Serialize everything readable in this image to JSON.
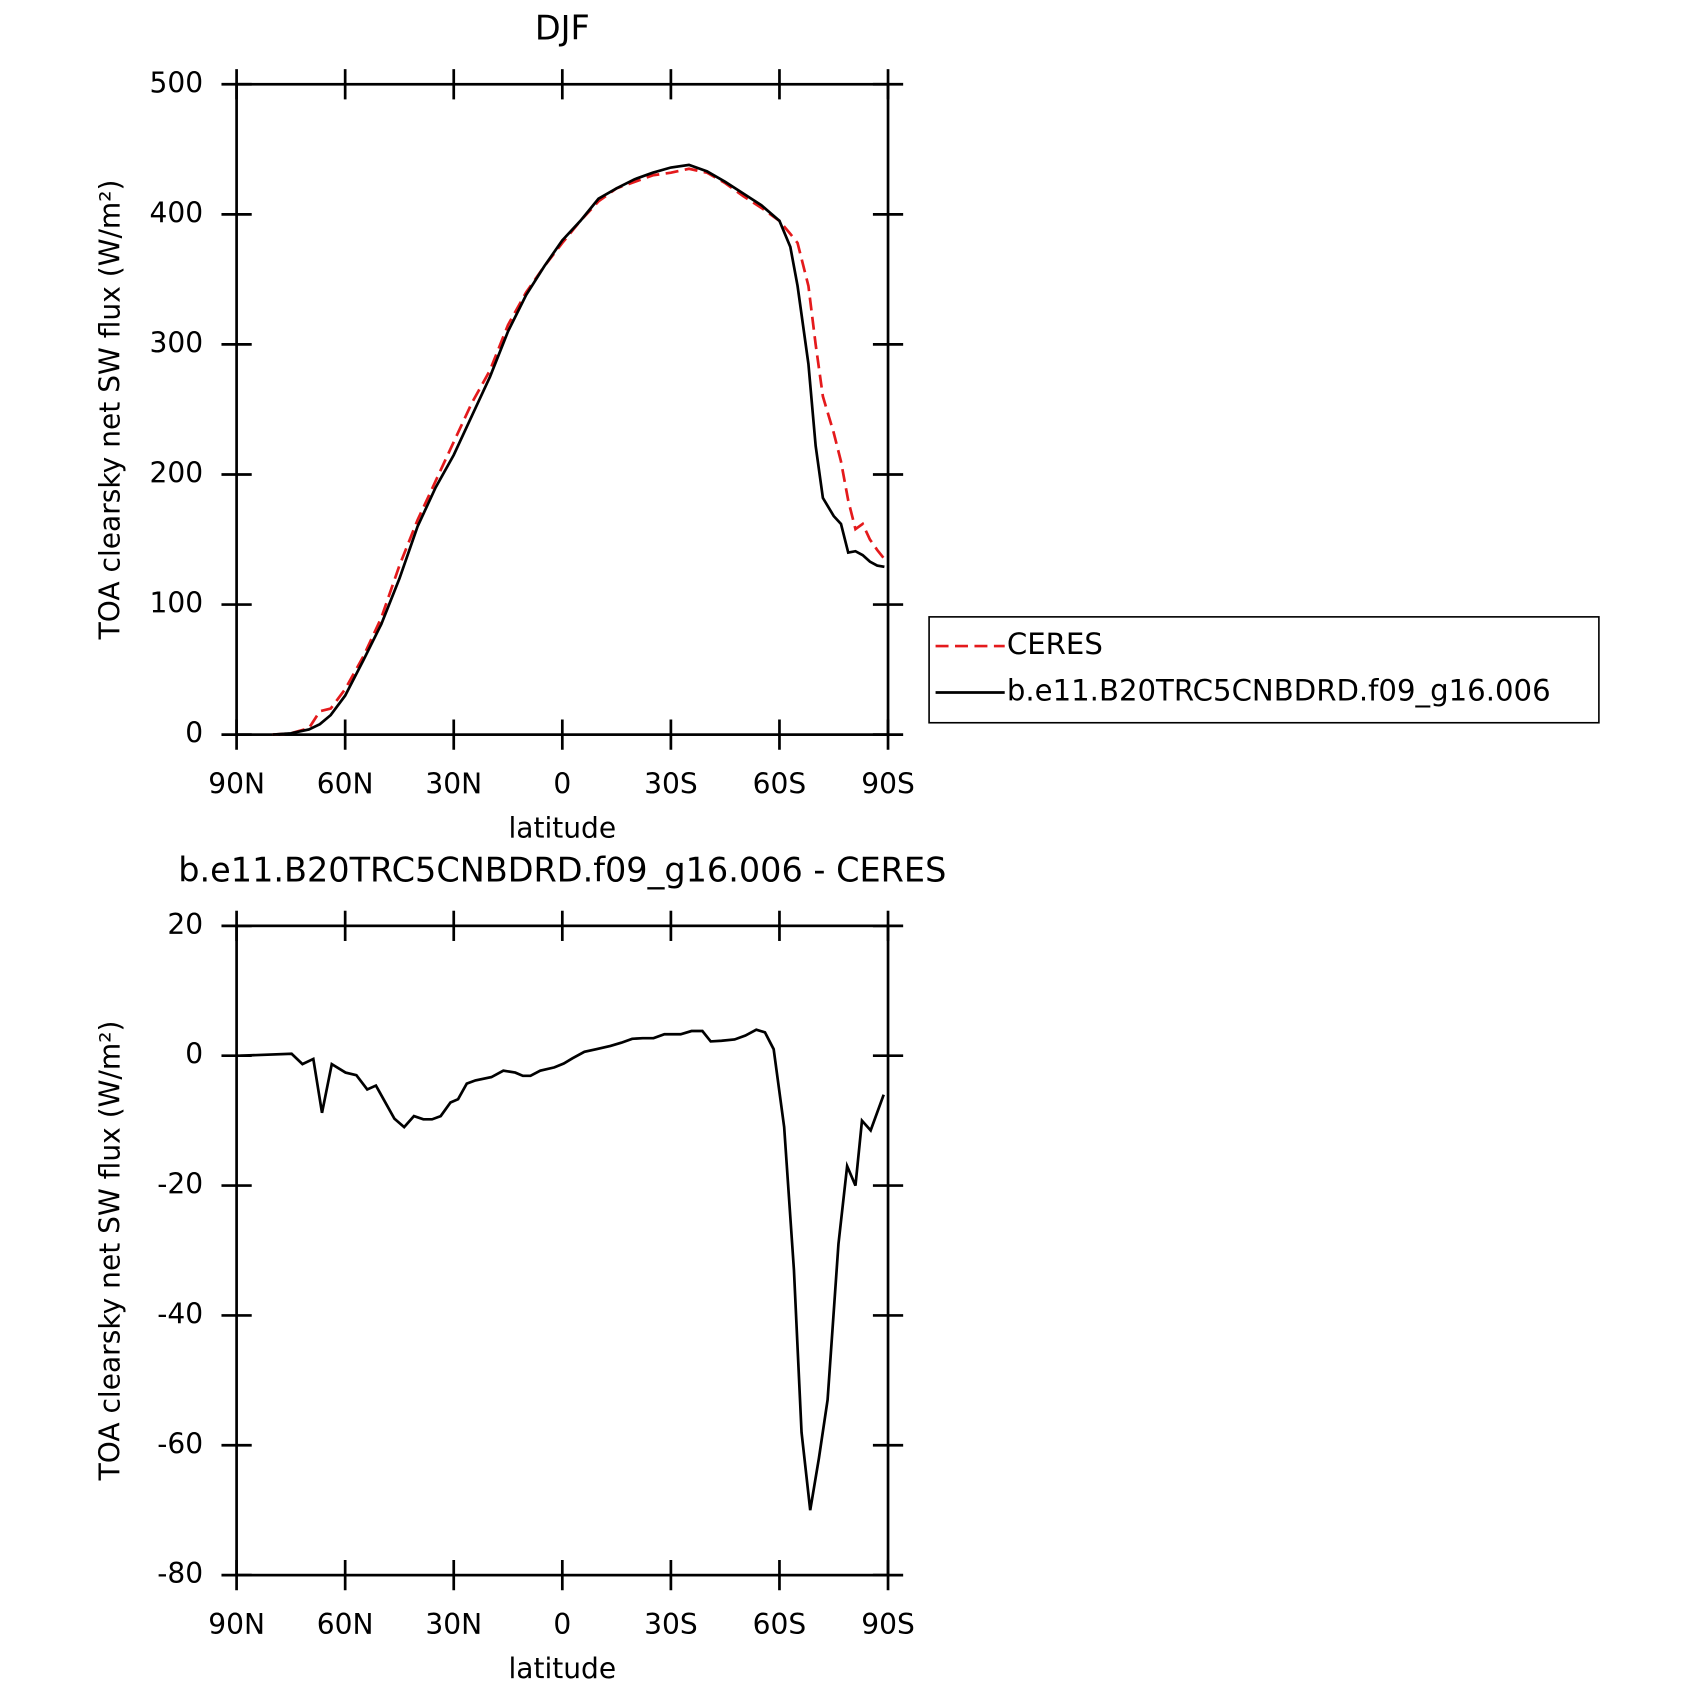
{
  "chart_data": [
    {
      "type": "line",
      "title": "DJF",
      "xlabel": "latitude",
      "ylabel": "TOA clearsky net SW flux (W/m²)",
      "x": [
        80,
        75,
        70,
        67,
        64,
        60,
        55,
        50,
        45,
        40,
        35,
        30,
        25,
        20,
        15,
        10,
        5,
        0,
        -5,
        -10,
        -15,
        -20,
        -25,
        -30,
        -35,
        -40,
        -45,
        -50,
        -55,
        -60,
        -63,
        -65,
        -68,
        -70,
        -72,
        -75,
        -77,
        -79,
        -81,
        -83,
        -85,
        -87,
        -89
      ],
      "series": [
        {
          "name": "CERES",
          "color": "#e41a1c",
          "linestyle": "dashed",
          "values": [
            0,
            1,
            5,
            18,
            20,
            35,
            60,
            90,
            130,
            165,
            195,
            225,
            255,
            280,
            315,
            340,
            360,
            378,
            395,
            410,
            420,
            425,
            430,
            432,
            435,
            432,
            424,
            414,
            405,
            395,
            385,
            378,
            345,
            300,
            260,
            232,
            210,
            180,
            158,
            162,
            150,
            142,
            135
          ]
        },
        {
          "name": "b.e11.B20TRC5CNBDRD.f09_g16.006",
          "color": "#000000",
          "linestyle": "solid",
          "values": [
            0,
            1,
            4,
            8,
            15,
            30,
            57,
            85,
            120,
            160,
            190,
            215,
            245,
            275,
            310,
            338,
            360,
            380,
            395,
            412,
            420,
            427,
            432,
            436,
            438,
            433,
            425,
            416,
            407,
            395,
            375,
            345,
            285,
            222,
            182,
            168,
            162,
            140,
            141,
            138,
            133,
            130,
            129
          ]
        }
      ],
      "xlim": [
        90,
        -90
      ],
      "xticks": [
        {
          "value": 90,
          "label": "90N"
        },
        {
          "value": 60,
          "label": "60N"
        },
        {
          "value": 30,
          "label": "30N"
        },
        0,
        {
          "value": -30,
          "label": "30S"
        },
        {
          "value": -60,
          "label": "60S"
        },
        {
          "value": -90,
          "label": "90S"
        }
      ],
      "ylim": [
        0,
        500
      ],
      "yticks": [
        0,
        100,
        200,
        300,
        400,
        500
      ],
      "legend": "outside-right"
    },
    {
      "type": "line",
      "title": "b.e11.B20TRC5CNBDRD.f09_g16.006 - CERES",
      "xlabel": "latitude",
      "ylabel": "TOA clearsky net SW flux (W/m²)",
      "x": [
        89,
        74.8,
        71.8,
        68.8,
        66.4,
        63.7,
        59.9,
        56.9,
        53.9,
        51.5,
        46.4,
        43.7,
        41,
        38.4,
        36,
        33.6,
        30.9,
        28.8,
        26.4,
        24,
        19.6,
        16.3,
        13,
        10.9,
        8.8,
        6.1,
        2.2,
        -0.4,
        -2.8,
        -6.1,
        -9.4,
        -13.3,
        -16.3,
        -19.3,
        -22.2,
        -25.2,
        -28.2,
        -32.7,
        -35.7,
        -38.7,
        -41,
        -44,
        -47.6,
        -50.6,
        -53.6,
        -56,
        -58.4,
        -61.3,
        -64,
        -66.1,
        -68.5,
        -70.9,
        -73.3,
        -76.3,
        -78.7,
        -81,
        -82.8,
        -85.2,
        -88.8
      ],
      "series": [
        {
          "name": "b.e11.B20TRC5CNBDRD.f09_g16.006",
          "color": "#000000",
          "linestyle": "solid",
          "values": [
            0,
            0.3,
            -1.3,
            -0.5,
            -8.8,
            -1.3,
            -2.6,
            -3,
            -5.2,
            -4.6,
            -9.7,
            -11,
            -9.3,
            -9.8,
            -9.8,
            -9.3,
            -7.2,
            -6.7,
            -4.3,
            -3.8,
            -3.3,
            -2.3,
            -2.6,
            -3.1,
            -3.1,
            -2.3,
            -1.8,
            -1.2,
            -0.4,
            0.6,
            1,
            1.5,
            2,
            2.6,
            2.7,
            2.7,
            3.3,
            3.3,
            3.8,
            3.8,
            2.2,
            2.3,
            2.5,
            3.1,
            4,
            3.6,
            1,
            -11,
            -33,
            -58,
            -70,
            -62,
            -53,
            -29,
            -17,
            -20,
            -10,
            -11.5,
            -6
          ]
        }
      ],
      "xlim": [
        90,
        -90
      ],
      "xticks": [
        {
          "value": 90,
          "label": "90N"
        },
        {
          "value": 60,
          "label": "60N"
        },
        {
          "value": 30,
          "label": "30N"
        },
        0,
        {
          "value": -30,
          "label": "30S"
        },
        {
          "value": -60,
          "label": "60S"
        },
        {
          "value": -90,
          "label": "90S"
        }
      ],
      "ylim": [
        -80,
        20
      ],
      "yticks": [
        -80,
        -60,
        -40,
        -20,
        0,
        20
      ]
    }
  ]
}
